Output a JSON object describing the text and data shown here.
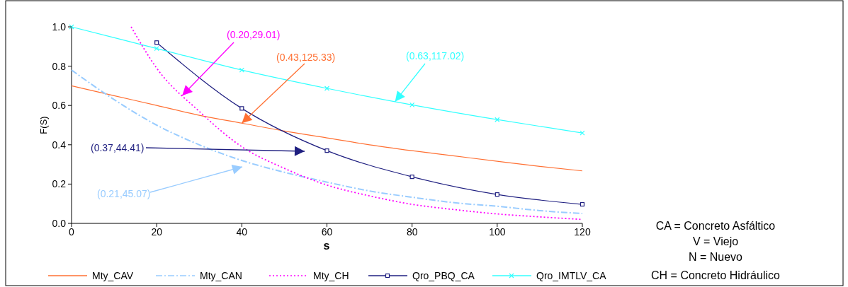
{
  "chart_data": {
    "type": "line",
    "xlabel": "s",
    "ylabel": "F(S)",
    "xlim": [
      0,
      120
    ],
    "xticks": [
      0,
      20,
      40,
      60,
      80,
      100,
      120
    ],
    "ylim": [
      0,
      1.0
    ],
    "yticks": [
      {
        "value": 0,
        "label": "0.0"
      },
      {
        "value": 0.2,
        "label": "0.2"
      },
      {
        "value": 0.4,
        "label": "0.4"
      },
      {
        "value": 0.6,
        "label": "0.6"
      },
      {
        "value": 0.8,
        "label": "0.8"
      },
      {
        "value": 1.0,
        "label": "1.0"
      }
    ],
    "grid": false,
    "legend": "bottom",
    "series": [
      {
        "name": "Mty_CAV",
        "color": "#ff7033",
        "marker": "none",
        "line_style": "solid",
        "x": [
          0,
          10,
          20,
          30,
          40,
          50,
          60,
          70,
          80,
          90,
          100,
          110,
          120
        ],
        "values": [
          0.7,
          0.65,
          0.6,
          0.55,
          0.51,
          0.47,
          0.435,
          0.4,
          0.37,
          0.343,
          0.316,
          0.29,
          0.267
        ]
      },
      {
        "name": "Mty_CAN",
        "color": "#99ccff",
        "marker": "none",
        "line_style": "dashed",
        "x": [
          0,
          10,
          20,
          30,
          40,
          50,
          60,
          70,
          80,
          90,
          100,
          110,
          120
        ],
        "values": [
          0.78,
          0.63,
          0.5,
          0.4,
          0.32,
          0.26,
          0.21,
          0.165,
          0.133,
          0.105,
          0.087,
          0.065,
          0.05
        ]
      },
      {
        "name": "Mty_CH",
        "color": "#ff00ff",
        "marker": "none",
        "line_style": "dotted",
        "x": [
          14,
          20,
          30,
          40,
          50,
          60,
          70,
          80,
          90,
          100,
          110,
          120
        ],
        "values": [
          1.0,
          0.79,
          0.57,
          0.39,
          0.28,
          0.195,
          0.14,
          0.097,
          0.07,
          0.048,
          0.033,
          0.02
        ]
      },
      {
        "name": "Qro_PBQ_CA",
        "color": "#1f1f80",
        "marker": "square",
        "line_style": "solid",
        "x": [
          20,
          40,
          60,
          80,
          100,
          120
        ],
        "values": [
          0.92,
          0.585,
          0.37,
          0.237,
          0.147,
          0.097
        ]
      },
      {
        "name": "Qro_IMTLV_CA",
        "color": "#33ffff",
        "marker": "cross",
        "line_style": "solid",
        "x": [
          0,
          20,
          40,
          60,
          80,
          100,
          120
        ],
        "values": [
          1.0,
          0.89,
          0.78,
          0.687,
          0.603,
          0.528,
          0.46
        ]
      }
    ],
    "annotations": [
      {
        "text": "(0.43,125.33)",
        "x": 40,
        "y": 0.51
      },
      "(0.21,45.07)",
      {
        "text": "(0.20,29.01)",
        "x": 26,
        "y": 0.65
      },
      "(0.37,44.41)",
      {
        "text": "(0.63,117.02)",
        "x": 76,
        "y": 0.62
      },
      "CA = Concreto Asfáltico",
      "V = Viejo",
      "N = Nuevo",
      "CH = Concreto Hidráulico"
    ]
  }
}
